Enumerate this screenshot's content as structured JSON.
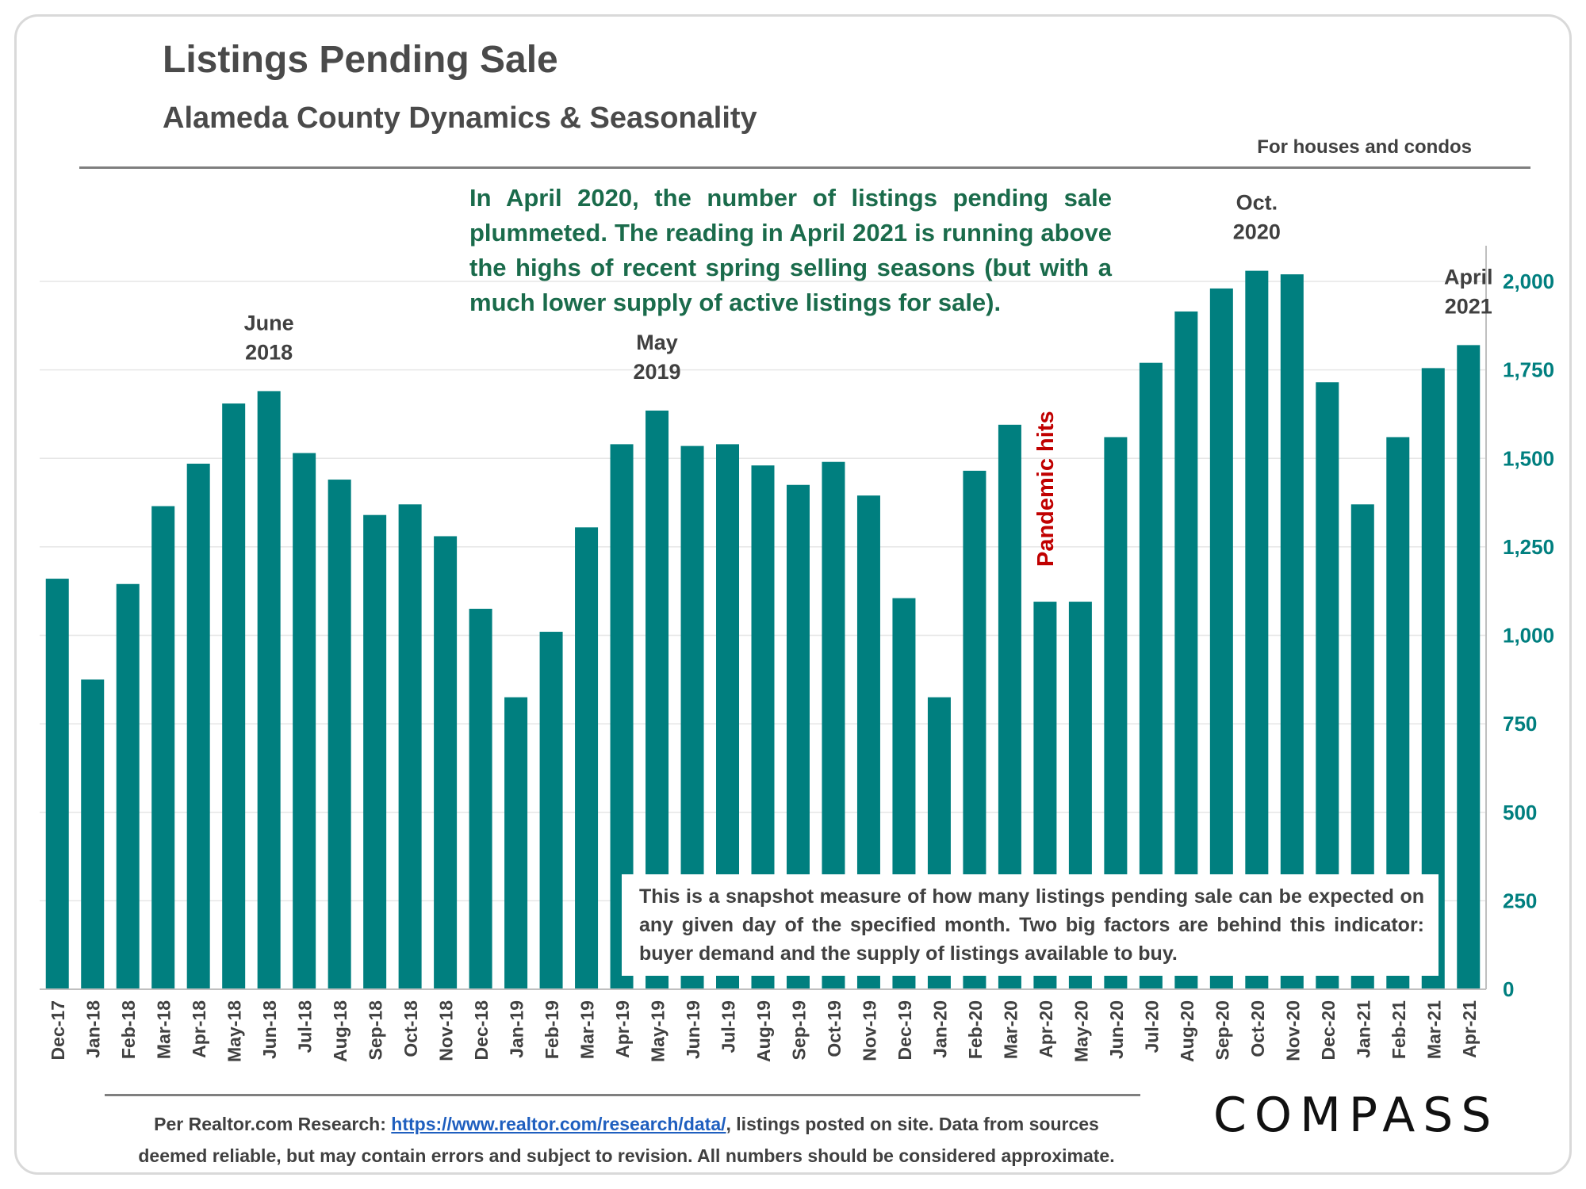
{
  "header": {
    "title": "Listings Pending Sale",
    "subtitle": "Alameda County Dynamics & Seasonality",
    "note": "For houses and condos"
  },
  "annotation": "In April 2020, the number of listings pending sale plummeted. The reading in April 2021 is running above the highs of recent spring selling seasons (but with a much lower supply of active listings for sale).",
  "info_box": "This is a snapshot measure of how many listings pending sale can be expected on any given day of the specified month. Two big factors are behind this indicator: buyer demand and the supply of listings available to buy.",
  "footer": {
    "line1_prefix": "Per Realtor.com Research: ",
    "link": "https://www.realtor.com/research/data/",
    "line1_suffix": ", listings posted on site. Data from sources",
    "line2": "deemed reliable, but may contain errors and subject to revision. All numbers should be considered approximate."
  },
  "logo": "COMPASS",
  "colors": {
    "bar": "#007f7f",
    "axis_label": "#007f7f",
    "annotation": "#1a6b4b",
    "pandemic": "#c00000"
  },
  "chart_data": {
    "type": "bar",
    "categories": [
      "Dec-17",
      "Jan-18",
      "Feb-18",
      "Mar-18",
      "Apr-18",
      "May-18",
      "Jun-18",
      "Jul-18",
      "Aug-18",
      "Sep-18",
      "Oct-18",
      "Nov-18",
      "Dec-18",
      "Jan-19",
      "Feb-19",
      "Mar-19",
      "Apr-19",
      "May-19",
      "Jun-19",
      "Jul-19",
      "Aug-19",
      "Sep-19",
      "Oct-19",
      "Nov-19",
      "Dec-19",
      "Jan-20",
      "Feb-20",
      "Mar-20",
      "Apr-20",
      "May-20",
      "Jun-20",
      "Jul-20",
      "Aug-20",
      "Sep-20",
      "Oct-20",
      "Nov-20",
      "Dec-20",
      "Jan-21",
      "Feb-21",
      "Mar-21",
      "Apr-21"
    ],
    "values": [
      1160,
      875,
      1145,
      1365,
      1485,
      1655,
      1690,
      1515,
      1440,
      1340,
      1370,
      1280,
      1075,
      825,
      1010,
      1305,
      1540,
      1635,
      1535,
      1540,
      1480,
      1425,
      1490,
      1395,
      1105,
      825,
      1465,
      1595,
      1095,
      1095,
      1560,
      1770,
      1915,
      1980,
      2030,
      2020,
      1715,
      1370,
      1560,
      1755,
      1820
    ],
    "y_axis": {
      "min": 0,
      "max": 2000,
      "ticks": [
        0,
        250,
        500,
        750,
        1000,
        1250,
        1500,
        1750,
        2000
      ],
      "tick_labels": [
        "0",
        "250",
        "500",
        "750",
        "1,000",
        "1,250",
        "1,500",
        "1,750",
        "2,000"
      ],
      "position": "right"
    },
    "gridlines": true,
    "callouts": [
      {
        "category": "Jun-18",
        "line1": "June",
        "line2": "2018"
      },
      {
        "category": "May-19",
        "line1": "May",
        "line2": "2019"
      },
      {
        "category": "Oct-20",
        "line1": "Oct.",
        "line2": "2020"
      },
      {
        "category": "Apr-21",
        "line1": "April",
        "line2": "2021"
      }
    ],
    "vertical_label": {
      "category": "Apr-20",
      "text": "Pandemic hits"
    }
  }
}
